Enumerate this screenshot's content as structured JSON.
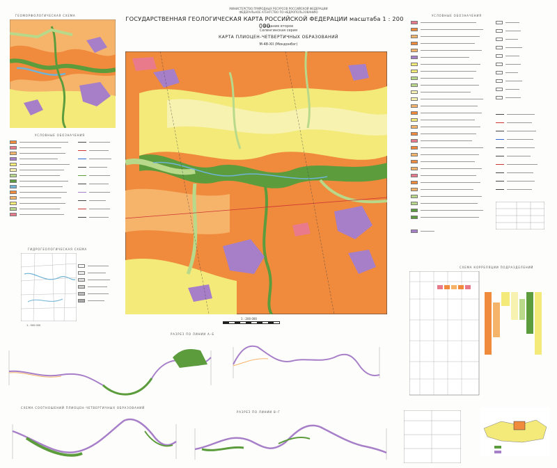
{
  "header": {
    "ministry_line1": "МИНИСТЕРСТВО ПРИРОДНЫХ РЕСУРСОВ РОССИЙСКОЙ ФЕДЕРАЦИИ",
    "ministry_line2": "ФЕДЕРАЛЬНОЕ АГЕНТСТВО ПО НЕДРОПОЛЬЗОВАНИЮ",
    "title": "ГОСУДАРСТВЕННАЯ ГЕОЛОГИЧЕСКАЯ КАРТА РОССИЙСКОЙ ФЕДЕРАЦИИ масштаба 1 : 200 000",
    "edition": "Издание второе",
    "series": "Селенгинская серия",
    "map_name": "КАРТА ПЛИОЦЕН-ЧЕТВЕРТИЧНЫХ ОБРАЗОВАНИЙ",
    "sheet": "М-48-XII (Мондонбэг)"
  },
  "panels": {
    "geomorph_title": "ГЕОМОРФОЛОГИЧЕСКАЯ СХЕМА",
    "legend_left_title": "УСЛОВНЫЕ ОБОЗНАЧЕНИЯ",
    "legend_right_title": "УСЛОВНЫЕ ОБОЗНАЧЕНИЯ",
    "hydro_title": "ГИДРОГЕОЛОГИЧЕСКАЯ СХЕМА",
    "correlation_title": "СХЕМА КОРРЕЛЯЦИИ ПОДРАЗДЕЛЕНИЙ",
    "section1_title": "РАЗРЕЗ ПО ЛИНИИ А–Б",
    "section2_title": "РАЗРЕЗ ПО ЛИНИИ В–Г",
    "section3_title": "СХЕМА СООТНОШЕНИЙ ПЛИОЦЕН-ЧЕТВЕРТИЧНЫХ ОБРАЗОВАНИЙ",
    "scale_label": "1 : 200 000",
    "small_scale": "1 : 500 000"
  },
  "colors": {
    "orange": "#f08a3c",
    "light_orange": "#f6b46a",
    "yellow": "#f3ea7a",
    "pale_yellow": "#f7f2b0",
    "green": "#5c9c3c",
    "light_green": "#b8d98a",
    "purple": "#a77fc9",
    "blue": "#6fb3d6",
    "pink": "#e87a8c"
  }
}
